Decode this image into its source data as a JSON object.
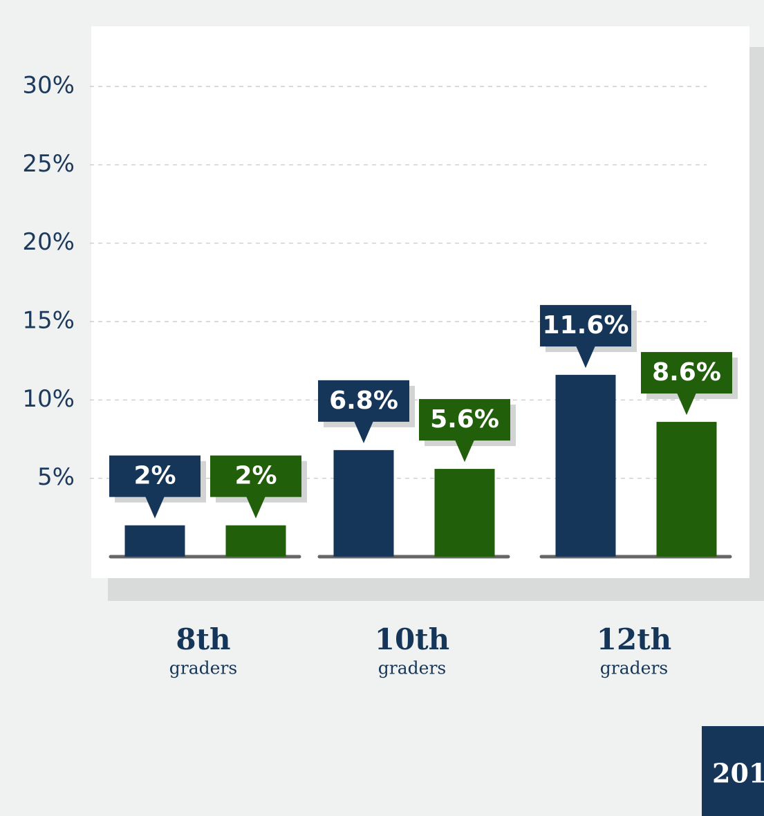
{
  "chart_data": {
    "type": "bar",
    "categories": [
      "8th",
      "10th",
      "12th"
    ],
    "category_sublabels": [
      "graders",
      "graders",
      "graders"
    ],
    "series": [
      {
        "color": "#163659",
        "values": [
          2,
          6.8,
          11.6
        ],
        "value_labels": [
          "2%",
          "6.8%",
          "11.6%"
        ]
      },
      {
        "color": "#215f0b",
        "values": [
          2,
          5.6,
          8.6
        ],
        "value_labels": [
          "2%",
          "5.6%",
          "8.6%"
        ]
      }
    ],
    "ylim": [
      0,
      30
    ],
    "yticks": [
      {
        "value": 5,
        "label": "5%"
      },
      {
        "value": 10,
        "label": "10%"
      },
      {
        "value": 15,
        "label": "15%"
      },
      {
        "value": 20,
        "label": "20%"
      },
      {
        "value": 25,
        "label": "25%"
      },
      {
        "value": 30,
        "label": "30%"
      }
    ],
    "grid": true,
    "corner_label": "201"
  }
}
